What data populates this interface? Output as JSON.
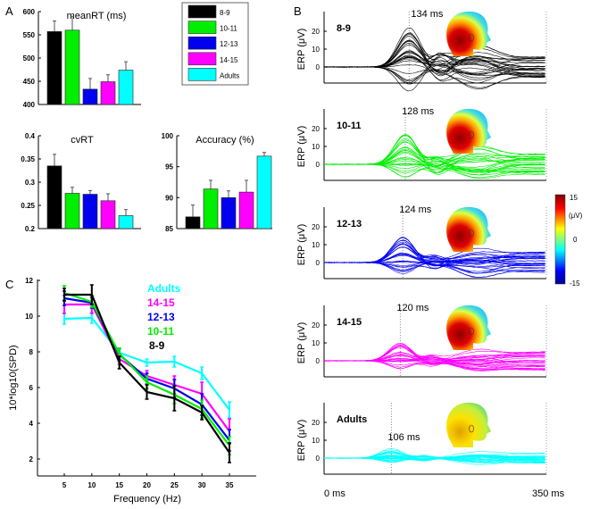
{
  "panel_labels": [
    "A",
    "B",
    "C"
  ],
  "groups": [
    {
      "name": "8-9",
      "color": "#000000"
    },
    {
      "name": "10-11",
      "color": "#00ee00"
    },
    {
      "name": "12-13",
      "color": "#0000ee"
    },
    {
      "name": "14-15",
      "color": "#ff00ff"
    },
    {
      "name": "Adults",
      "color": "#00ffff"
    }
  ],
  "chart_data": [
    {
      "type": "bar",
      "id": "meanRT",
      "title": "meanRT (ms)",
      "categories": [
        "8-9",
        "10-11",
        "12-13",
        "14-15",
        "Adults"
      ],
      "values": [
        557,
        560,
        433,
        449,
        474
      ],
      "error_upper": [
        580,
        590,
        456,
        464,
        492
      ],
      "ylim": [
        400,
        600
      ],
      "yticks": [
        400,
        450,
        500,
        550,
        600
      ],
      "ytick_labels": [
        "400",
        "450",
        "500",
        "550",
        "600"
      ]
    },
    {
      "type": "bar",
      "id": "cvRT",
      "title": "cvRT",
      "categories": [
        "8-9",
        "10-11",
        "12-13",
        "14-15",
        "Adults"
      ],
      "values": [
        0.335,
        0.276,
        0.274,
        0.26,
        0.228
      ],
      "error_upper": [
        0.36,
        0.289,
        0.282,
        0.275,
        0.241
      ],
      "ylim": [
        0.2,
        0.4
      ],
      "yticks": [
        0.2,
        0.25,
        0.3,
        0.35,
        0.4
      ],
      "ytick_labels": [
        "0.2",
        "0.25",
        "0.3",
        "0.35",
        "0.4"
      ]
    },
    {
      "type": "bar",
      "id": "accuracy",
      "title": "Accuracy (%)",
      "categories": [
        "8-9",
        "10-11",
        "12-13",
        "14-15",
        "Adults"
      ],
      "values": [
        86.9,
        91.4,
        90.0,
        90.9,
        96.7
      ],
      "error_upper": [
        88.8,
        92.8,
        91.1,
        92.8,
        97.3
      ],
      "ylim": [
        85,
        100
      ],
      "yticks": [
        85,
        90,
        95,
        100
      ],
      "ytick_labels": [
        "85",
        "90",
        "95",
        "100"
      ]
    },
    {
      "type": "line",
      "id": "spd",
      "xlabel": "Frequency (Hz)",
      "ylabel": "10*log10(SPD)",
      "x": [
        5,
        10,
        15,
        20,
        25,
        30,
        35
      ],
      "xticks": [
        "5",
        "10",
        "15",
        "20",
        "25",
        "30",
        "35"
      ],
      "yticks": [
        "2",
        "4",
        "6",
        "8",
        "10",
        "12"
      ],
      "xlim": [
        0.2,
        39
      ],
      "ylim": [
        1.05,
        12
      ],
      "legend_order": [
        "Adults",
        "14-15",
        "12-13",
        "10-11",
        "8-9"
      ],
      "series": [
        {
          "name": "8-9",
          "values": [
            11.2,
            11.2,
            7.4,
            5.75,
            5.4,
            4.6,
            2.35
          ],
          "err": [
            0.35,
            0.55,
            0.35,
            0.4,
            0.7,
            0.4,
            0.55
          ]
        },
        {
          "name": "10-11",
          "values": [
            11.3,
            10.8,
            7.9,
            6.3,
            5.6,
            4.8,
            2.75
          ],
          "err": [
            0.4,
            0.3,
            0.3,
            0.35,
            0.5,
            0.5,
            0.5
          ]
        },
        {
          "name": "12-13",
          "values": [
            11.0,
            10.75,
            7.85,
            6.5,
            5.95,
            5.05,
            3.05
          ],
          "err": [
            0.4,
            0.3,
            0.35,
            0.3,
            0.5,
            0.6,
            0.6
          ]
        },
        {
          "name": "14-15",
          "values": [
            10.65,
            10.65,
            7.6,
            6.65,
            6.15,
            5.65,
            3.55
          ],
          "err": [
            0.5,
            0.5,
            0.3,
            0.3,
            0.5,
            0.65,
            0.7
          ]
        },
        {
          "name": "Adults",
          "values": [
            9.85,
            9.9,
            7.95,
            7.4,
            7.45,
            6.8,
            4.75
          ],
          "err": [
            0.3,
            0.3,
            0.2,
            0.2,
            0.3,
            0.35,
            0.45
          ]
        }
      ]
    },
    {
      "type": "line",
      "id": "erp",
      "ylabel": "ERP (μV)",
      "xlim": [
        0,
        350
      ],
      "ylim": [
        -10,
        30
      ],
      "x_labels": [
        "0 ms",
        "350 ms"
      ],
      "yticks": [
        "0",
        "10",
        "20"
      ],
      "panels": [
        {
          "group": "8-9",
          "peak_latency": "134 ms",
          "latency_ms": 134,
          "peak_amplitude": 30
        },
        {
          "group": "10-11",
          "peak_latency": "128 ms",
          "latency_ms": 128,
          "peak_amplitude": 23
        },
        {
          "group": "12-13",
          "peak_latency": "124 ms",
          "latency_ms": 124,
          "peak_amplitude": 19
        },
        {
          "group": "14-15",
          "peak_latency": "120 ms",
          "latency_ms": 120,
          "peak_amplitude": 13
        },
        {
          "group": "Adults",
          "peak_latency": "106 ms",
          "latency_ms": 106,
          "peak_amplitude": 7
        }
      ]
    }
  ],
  "colorbar": {
    "max": "15",
    "mid": "0",
    "min": "-15",
    "unit": "(μV)"
  }
}
